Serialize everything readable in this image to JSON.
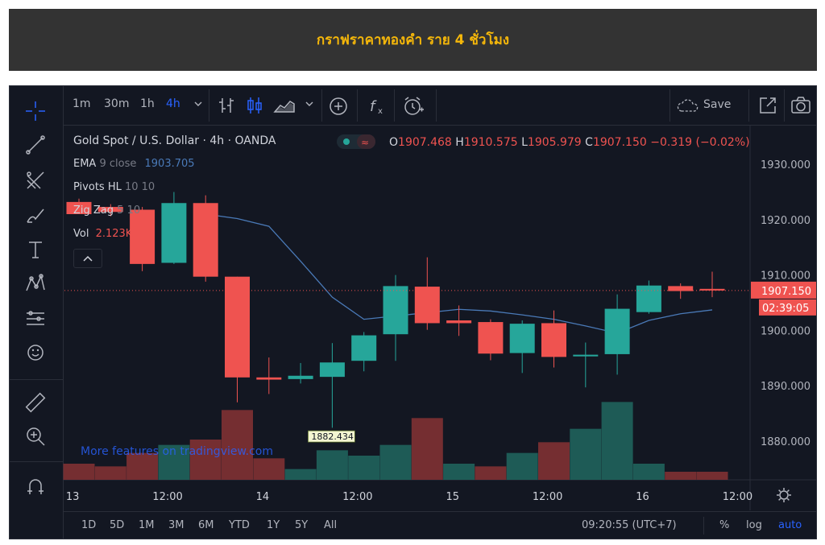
{
  "banner": {
    "title": "กราฟราคาทองคำ ราย 4 ชั่วโมง"
  },
  "toolbar": {
    "timeframes": [
      "1m",
      "30m",
      "1h",
      "4h"
    ],
    "active_timeframe": "4h",
    "save_label": "Save",
    "icons": [
      "crosshair-icon",
      "trend-line-icon",
      "fib-icon",
      "brush-icon",
      "text-icon",
      "pattern-icon",
      "forecast-icon",
      "emoji-icon",
      "ruler-icon",
      "zoom-icon",
      "magnet-icon"
    ]
  },
  "legend": {
    "symbol": "Gold Spot / U.S. Dollar · 4h · OANDA",
    "open_label": "O",
    "open": "1907.468",
    "high_label": "H",
    "high": "1910.575",
    "low_label": "L",
    "low": "1905.979",
    "close_label": "C",
    "close": "1907.150",
    "change": "−0.319 (−0.02%)"
  },
  "indicators": {
    "ema_name": "EMA",
    "ema_params": "9 close",
    "ema_value": "1903.705",
    "pivots_name": "Pivots HL",
    "pivots_params": "10 10",
    "zigzag_name": "Zig Zag",
    "zigzag_params": "5 10",
    "vol_name": "Vol",
    "vol_value": "2.123K"
  },
  "price_label": "1907.150",
  "countdown": "02:39:05",
  "low_marker": "1882.434",
  "watermark": "More features on tradingview.com",
  "bottom": {
    "ranges": [
      "1D",
      "5D",
      "1M",
      "3M",
      "6M",
      "YTD",
      "1Y",
      "5Y",
      "All"
    ],
    "clock": "09:20:55 (UTC+7)",
    "options": [
      "%",
      "log",
      "auto"
    ]
  },
  "colors": {
    "up": "#26a69a",
    "down": "#ef5350",
    "ema": "#4a7ab8",
    "accent": "#2962ff",
    "banner_text": "#f5b70a"
  },
  "chart_data": {
    "type": "candlestick",
    "title": "Gold Spot / U.S. Dollar",
    "x_tick_labels": [
      "13",
      "12:00",
      "14",
      "12:00",
      "15",
      "12:00",
      "16",
      "12:00"
    ],
    "y_tick_labels": [
      "1930.000",
      "1920.000",
      "1910.000",
      "1900.000",
      "1890.000",
      "1880.000"
    ],
    "ylim": [
      1873,
      1937
    ],
    "candles": [
      {
        "o": 1923.2,
        "h": 1923.8,
        "l": 1921.0,
        "c": 1921.0
      },
      {
        "o": 1922.3,
        "h": 1922.8,
        "l": 1920.6,
        "c": 1921.4
      },
      {
        "o": 1921.8,
        "h": 1922.3,
        "l": 1910.7,
        "c": 1912.0
      },
      {
        "o": 1912.2,
        "h": 1925.0,
        "l": 1912.0,
        "c": 1923.0
      },
      {
        "o": 1923.0,
        "h": 1924.4,
        "l": 1908.8,
        "c": 1909.7
      },
      {
        "o": 1909.7,
        "h": 1909.7,
        "l": 1887.0,
        "c": 1891.5
      },
      {
        "o": 1891.5,
        "h": 1895.1,
        "l": 1888.5,
        "c": 1891.1
      },
      {
        "o": 1891.2,
        "h": 1894.1,
        "l": 1890.4,
        "c": 1891.8
      },
      {
        "o": 1891.6,
        "h": 1897.7,
        "l": 1882.4,
        "c": 1894.2
      },
      {
        "o": 1894.5,
        "h": 1899.7,
        "l": 1892.6,
        "c": 1899.1
      },
      {
        "o": 1899.3,
        "h": 1910.0,
        "l": 1894.5,
        "c": 1908.0
      },
      {
        "o": 1907.9,
        "h": 1913.2,
        "l": 1900.1,
        "c": 1901.3
      },
      {
        "o": 1901.8,
        "h": 1904.5,
        "l": 1899.0,
        "c": 1901.3
      },
      {
        "o": 1901.5,
        "h": 1902.0,
        "l": 1894.6,
        "c": 1895.8
      },
      {
        "o": 1895.9,
        "h": 1901.8,
        "l": 1892.3,
        "c": 1901.2
      },
      {
        "o": 1901.3,
        "h": 1903.6,
        "l": 1893.3,
        "c": 1895.2
      },
      {
        "o": 1895.3,
        "h": 1897.8,
        "l": 1889.7,
        "c": 1895.6
      },
      {
        "o": 1895.7,
        "h": 1906.5,
        "l": 1892.0,
        "c": 1903.9
      },
      {
        "o": 1903.3,
        "h": 1909.0,
        "l": 1903.0,
        "c": 1908.1
      },
      {
        "o": 1908.0,
        "h": 1908.5,
        "l": 1905.7,
        "c": 1907.1
      },
      {
        "o": 1907.5,
        "h": 1910.6,
        "l": 1906.0,
        "c": 1907.2
      }
    ],
    "ema": [
      1921.0,
      1920.2,
      1918.8,
      1912.5,
      1906.0,
      1902.0,
      1902.6,
      1903.2,
      1903.8,
      1903.5,
      1902.8,
      1902.0,
      1900.8,
      1899.5,
      1901.8,
      1903.0,
      1903.7
    ],
    "ema_start_index": 4,
    "volume": [
      0.6,
      0.5,
      1.0,
      1.3,
      1.5,
      2.6,
      0.8,
      0.4,
      1.1,
      0.9,
      1.3,
      2.3,
      0.6,
      0.5,
      1.0,
      1.4,
      1.9,
      2.9,
      0.6,
      0.3,
      0.3
    ],
    "volume_up": [
      false,
      false,
      false,
      true,
      false,
      false,
      false,
      true,
      true,
      true,
      true,
      false,
      true,
      false,
      true,
      false,
      true,
      true,
      true,
      false,
      false
    ]
  }
}
